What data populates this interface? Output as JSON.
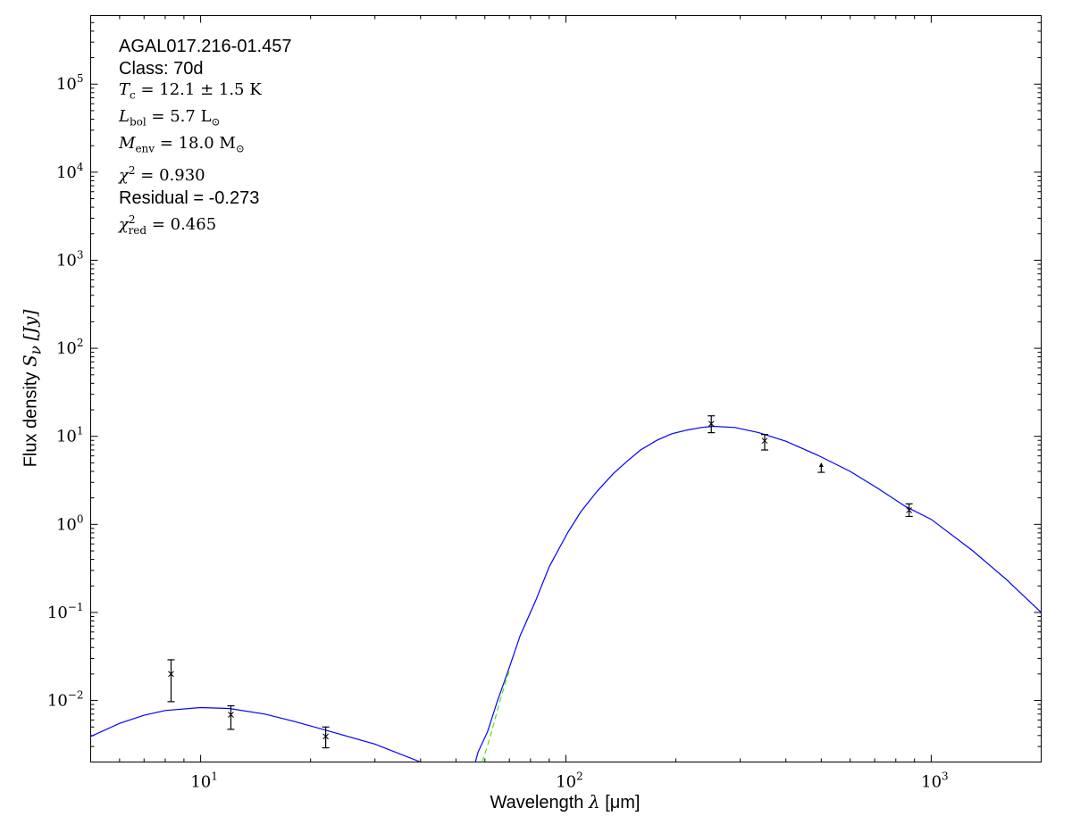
{
  "chart_data": {
    "type": "line",
    "xlabel": {
      "text": "Wavelength ",
      "symbol": "λ",
      "unit": "[μm]"
    },
    "ylabel": {
      "text": "Flux density ",
      "symbol": "S",
      "sub": "ν",
      "unit": "[Jy]"
    },
    "xscale": "log",
    "yscale": "log",
    "xlim": [
      5,
      2000
    ],
    "ylim": [
      0.002,
      600000
    ],
    "grid": false,
    "x_ticks": [
      {
        "value": 10,
        "label": "10",
        "exp": "1"
      },
      {
        "value": 100,
        "label": "10",
        "exp": "2"
      },
      {
        "value": 1000,
        "label": "10",
        "exp": "3"
      }
    ],
    "y_ticks": [
      {
        "value": 0.01,
        "label": "10",
        "exp": "−2"
      },
      {
        "value": 0.1,
        "label": "10",
        "exp": "−1"
      },
      {
        "value": 1,
        "label": "10",
        "exp": "0"
      },
      {
        "value": 10,
        "label": "10",
        "exp": "1"
      },
      {
        "value": 100,
        "label": "10",
        "exp": "2"
      },
      {
        "value": 1000,
        "label": "10",
        "exp": "3"
      },
      {
        "value": 10000,
        "label": "10",
        "exp": "4"
      },
      {
        "value": 100000,
        "label": "10",
        "exp": "5"
      }
    ],
    "annotation": {
      "source": "AGAL017.216-01.457",
      "class": "Class: 70d",
      "tc": {
        "sym": "T",
        "sub": "c",
        "rest": " = 12.1 ± 1.5 K"
      },
      "lbol": {
        "sym": "L",
        "sub": "bol",
        "rest": " = 5.7 L",
        "rest_sub": "⊙"
      },
      "menv": {
        "sym": "M",
        "sub": "env",
        "rest": " = 18.0 M",
        "rest_sub": "⊙"
      },
      "chi2": {
        "sym": "χ",
        "sup": "2",
        "rest": " = 0.930"
      },
      "residual": "Residual = -0.273",
      "chi2red": {
        "sym": "χ",
        "sup": "2",
        "sub": "red",
        "rest": " = 0.465"
      }
    },
    "measurements": [
      {
        "x": 8.3,
        "y": 0.02,
        "ylo": 0.0097,
        "yhi": 0.029
      },
      {
        "x": 12.1,
        "y": 0.0069,
        "ylo": 0.0047,
        "yhi": 0.0087
      },
      {
        "x": 22,
        "y": 0.0039,
        "ylo": 0.0029,
        "yhi": 0.005
      },
      {
        "x": 250,
        "y": 13.9,
        "ylo": 11.0,
        "yhi": 17.1
      },
      {
        "x": 350,
        "y": 8.9,
        "ylo": 7.0,
        "yhi": 10.5
      },
      {
        "x": 500,
        "y": 3.9,
        "lower_limit": true
      },
      {
        "x": 870,
        "y": 1.45,
        "ylo": 1.23,
        "yhi": 1.71
      }
    ],
    "series": [
      {
        "color": "#0000ff",
        "style": "solid",
        "segments": [
          [
            [
              5,
              0.0039
            ],
            [
              6,
              0.0055
            ],
            [
              7,
              0.0068
            ],
            [
              8,
              0.0077
            ],
            [
              10,
              0.0083
            ],
            [
              12,
              0.0081
            ],
            [
              15,
              0.007
            ],
            [
              18,
              0.0058
            ],
            [
              22,
              0.0046
            ],
            [
              30,
              0.0032
            ],
            [
              40,
              0.002
            ]
          ],
          [
            [
              56.5,
              0.002
            ],
            [
              57.5,
              0.0026
            ],
            [
              61,
              0.0044
            ],
            [
              65,
              0.01
            ],
            [
              69.7,
              0.0225
            ],
            [
              75,
              0.055
            ],
            [
              82.6,
              0.136
            ],
            [
              90,
              0.33
            ],
            [
              101,
              0.8
            ],
            [
              110,
              1.4
            ],
            [
              122,
              2.4
            ],
            [
              135,
              3.8
            ],
            [
              147,
              5.2
            ],
            [
              160,
              7.0
            ],
            [
              178,
              9.1
            ],
            [
              195,
              10.7
            ],
            [
              215,
              11.8
            ],
            [
              235,
              12.6
            ],
            [
              253,
              13.0
            ],
            [
              290,
              12.6
            ],
            [
              337,
              11.0
            ],
            [
              400,
              8.8
            ],
            [
              489,
              6.1
            ],
            [
              600,
              4.0
            ],
            [
              713,
              2.58
            ],
            [
              850,
              1.6
            ],
            [
              1000,
              1.14
            ],
            [
              1300,
              0.5
            ],
            [
              1600,
              0.24
            ],
            [
              2000,
              0.1
            ]
          ]
        ]
      },
      {
        "color": "#44ee00",
        "style": "dashed",
        "segments": [
          [
            [
              59,
              0.002
            ],
            [
              62,
              0.0038
            ],
            [
              66,
              0.01
            ],
            [
              70,
              0.022
            ]
          ]
        ]
      }
    ]
  }
}
